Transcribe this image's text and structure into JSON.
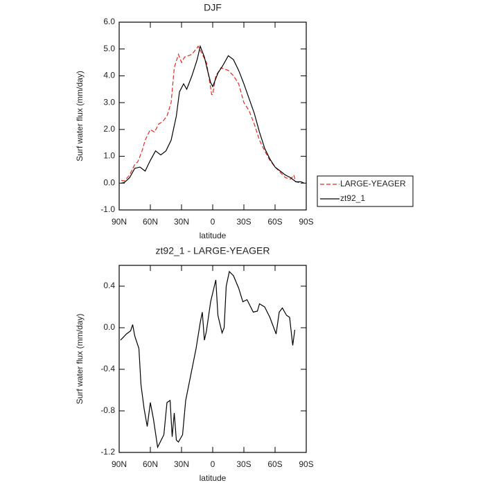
{
  "chart_data": [
    {
      "type": "line",
      "title": "DJF",
      "xlabel": "latitude",
      "ylabel": "Surf water flux (mm/day)",
      "xlim": [
        90,
        -90
      ],
      "xticks": [
        {
          "value": 90,
          "label": "90N"
        },
        {
          "value": 60,
          "label": "60N"
        },
        {
          "value": 30,
          "label": "30N"
        },
        {
          "value": 0,
          "label": "0"
        },
        {
          "value": -30,
          "label": "30S"
        },
        {
          "value": -60,
          "label": "60S"
        },
        {
          "value": -90,
          "label": "90S"
        }
      ],
      "ylim": [
        -1,
        6
      ],
      "yticks": [
        {
          "value": -1,
          "label": "-1.0"
        },
        {
          "value": 0,
          "label": "0.0"
        },
        {
          "value": 1,
          "label": "1.0"
        },
        {
          "value": 2,
          "label": "2.0"
        },
        {
          "value": 3,
          "label": "3.0"
        },
        {
          "value": 4,
          "label": "4.0"
        },
        {
          "value": 5,
          "label": "5.0"
        },
        {
          "value": 6,
          "label": "6.0"
        }
      ],
      "legend": "right",
      "series": [
        {
          "name": "LARGE-YEAGER",
          "color": "#e8281e",
          "dash": true,
          "x": [
            88,
            85,
            80,
            75,
            72,
            68,
            65,
            60,
            56,
            52,
            48,
            44,
            40,
            37,
            33,
            30,
            27,
            20,
            14,
            10,
            6,
            3,
            1,
            0,
            -3,
            -8,
            -15,
            -20,
            -25,
            -30,
            -35,
            -40,
            -45,
            -50,
            -55,
            -60,
            -65,
            -70,
            -75,
            -78,
            -80,
            -85
          ],
          "values": [
            0.1,
            0.08,
            0.3,
            0.7,
            0.8,
            1.2,
            1.6,
            2.0,
            1.9,
            2.2,
            2.3,
            2.5,
            3.0,
            4.3,
            4.8,
            4.5,
            4.7,
            4.8,
            5.1,
            4.8,
            4.5,
            3.8,
            3.3,
            3.3,
            4.0,
            4.3,
            4.2,
            4.0,
            3.7,
            3.0,
            2.7,
            2.2,
            1.6,
            1.2,
            0.85,
            0.6,
            0.4,
            0.2,
            0.15,
            0.3,
            0.05,
            0.0
          ]
        },
        {
          "name": "zt92_1",
          "color": "#000000",
          "dash": false,
          "x": [
            88,
            85,
            80,
            75,
            70,
            65,
            60,
            55,
            50,
            45,
            40,
            35,
            32,
            28,
            25,
            20,
            15,
            12,
            8,
            5,
            2,
            0,
            -5,
            -10,
            -15,
            -20,
            -25,
            -30,
            -35,
            -40,
            -45,
            -50,
            -55,
            -60,
            -65,
            -70,
            -75,
            -80,
            -85,
            -88
          ],
          "values": [
            0.0,
            0.02,
            0.2,
            0.55,
            0.6,
            0.45,
            0.85,
            1.2,
            1.05,
            1.2,
            1.6,
            2.5,
            3.4,
            3.7,
            3.5,
            4.0,
            4.6,
            5.1,
            4.7,
            4.2,
            3.75,
            3.6,
            4.1,
            4.4,
            4.75,
            4.6,
            4.2,
            3.7,
            3.15,
            2.6,
            1.9,
            1.3,
            0.9,
            0.6,
            0.45,
            0.3,
            0.2,
            0.05,
            0.05,
            0.0
          ]
        }
      ]
    },
    {
      "type": "line",
      "title": "zt92_1 - LARGE-YEAGER",
      "xlabel": "latitude",
      "ylabel": "Surf water flux (mm/day)",
      "xlim": [
        90,
        -90
      ],
      "xticks": [
        {
          "value": 90,
          "label": "90N"
        },
        {
          "value": 60,
          "label": "60N"
        },
        {
          "value": 30,
          "label": "30N"
        },
        {
          "value": 0,
          "label": "0"
        },
        {
          "value": -30,
          "label": "30S"
        },
        {
          "value": -60,
          "label": "60S"
        },
        {
          "value": -90,
          "label": "90S"
        }
      ],
      "ylim": [
        -1.2,
        0.6
      ],
      "yticks": [
        -1.2,
        -0.8,
        -0.4,
        {
          "value": 0,
          "label": "0.0"
        },
        0.4
      ],
      "series": [
        {
          "color": "#000000",
          "dash": false,
          "x": [
            88.7,
            83,
            79,
            77,
            75,
            71,
            69,
            66,
            63,
            60,
            57,
            53,
            47,
            44,
            41,
            39,
            37,
            35,
            33,
            29,
            26,
            21,
            16,
            12,
            10,
            8,
            6,
            2,
            -3,
            -5,
            -9,
            -11,
            -13,
            -16,
            -20,
            -25,
            -29,
            -33,
            -39,
            -43,
            -45,
            -50,
            -55,
            -61,
            -64,
            -67,
            -71,
            -74,
            -77,
            -79
          ],
          "values": [
            -0.12,
            -0.06,
            -0.03,
            0.03,
            -0.08,
            -0.2,
            -0.55,
            -0.78,
            -0.95,
            -0.72,
            -0.88,
            -1.15,
            -1.03,
            -0.72,
            -0.7,
            -1.05,
            -0.82,
            -1.08,
            -1.1,
            -1.03,
            -0.7,
            -0.45,
            -0.2,
            0.05,
            0.15,
            -0.12,
            -0.03,
            0.25,
            0.46,
            0.12,
            -0.05,
            0.0,
            0.4,
            0.54,
            0.5,
            0.38,
            0.25,
            0.27,
            0.15,
            0.16,
            0.23,
            0.2,
            0.1,
            -0.06,
            0.15,
            0.19,
            0.12,
            0.1,
            -0.17,
            -0.02
          ]
        }
      ]
    }
  ]
}
